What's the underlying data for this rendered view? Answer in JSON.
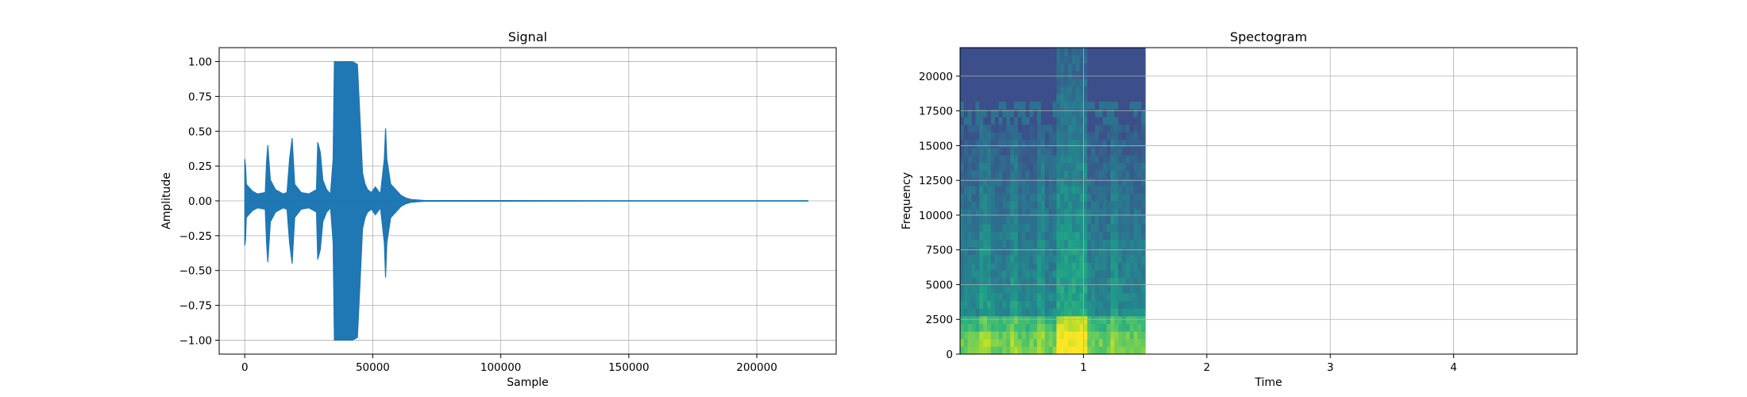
{
  "chart_data": [
    {
      "type": "line",
      "title": "Signal",
      "xlabel": "Sample",
      "ylabel": "Amplitude",
      "xlim": [
        -10000,
        231000
      ],
      "ylim": [
        -1.1,
        1.1
      ],
      "xticks": [
        0,
        50000,
        100000,
        150000,
        200000
      ],
      "yticks": [
        -1.0,
        -0.75,
        -0.5,
        -0.25,
        0.0,
        0.25,
        0.5,
        0.75,
        1.0
      ],
      "xtick_labels": [
        "0",
        "50000",
        "100000",
        "150000",
        "200000"
      ],
      "ytick_labels": [
        "−1.00",
        "−0.75",
        "−0.50",
        "−0.25",
        "0.00",
        "0.25",
        "0.50",
        "0.75",
        "1.00"
      ],
      "grid": true,
      "color": "#1f77b4",
      "series": [
        {
          "x": [
            0,
            300,
            600,
            1500,
            3000,
            5000,
            8000,
            8500,
            9000,
            10000,
            12000,
            15000,
            16500,
            17500,
            18500,
            19500,
            22000,
            25000,
            28000,
            28500,
            29500,
            30500,
            32000,
            33500,
            34500,
            35000,
            36000,
            38000,
            40000,
            42000,
            44000,
            45000,
            46000,
            47000,
            48000,
            49500,
            51000,
            53000,
            54500,
            55000,
            55500,
            57000,
            59000,
            61000,
            63000,
            65000,
            70000,
            100000,
            150000,
            200000,
            220000
          ],
          "upper": [
            0.3,
            0.25,
            0.12,
            0.1,
            0.07,
            0.05,
            0.06,
            0.28,
            0.4,
            0.15,
            0.08,
            0.05,
            0.06,
            0.3,
            0.45,
            0.12,
            0.06,
            0.05,
            0.08,
            0.42,
            0.35,
            0.15,
            0.08,
            0.05,
            0.3,
            1.0,
            1.0,
            1.0,
            1.0,
            1.0,
            0.98,
            0.6,
            0.2,
            0.12,
            0.08,
            0.06,
            0.1,
            0.05,
            0.3,
            0.52,
            0.3,
            0.12,
            0.08,
            0.04,
            0.02,
            0.01,
            0.003,
            0.002,
            0.001,
            0.001,
            0.001
          ],
          "lower": [
            -0.32,
            -0.28,
            -0.12,
            -0.1,
            -0.07,
            -0.05,
            -0.06,
            -0.3,
            -0.44,
            -0.15,
            -0.08,
            -0.05,
            -0.06,
            -0.3,
            -0.45,
            -0.12,
            -0.06,
            -0.05,
            -0.08,
            -0.42,
            -0.35,
            -0.15,
            -0.08,
            -0.05,
            -0.3,
            -1.0,
            -1.0,
            -1.0,
            -1.0,
            -1.0,
            -0.98,
            -0.6,
            -0.2,
            -0.12,
            -0.08,
            -0.06,
            -0.1,
            -0.05,
            -0.3,
            -0.55,
            -0.3,
            -0.12,
            -0.08,
            -0.04,
            -0.02,
            -0.01,
            -0.003,
            -0.002,
            -0.001,
            -0.001,
            -0.001
          ]
        }
      ]
    },
    {
      "type": "heatmap",
      "title": "Spectogram",
      "xlabel": "Time",
      "ylabel": "Frequency",
      "xlim": [
        0,
        5
      ],
      "ylim": [
        0,
        22050
      ],
      "xticks": [
        1,
        2,
        3,
        4
      ],
      "yticks": [
        0,
        2500,
        5000,
        7500,
        10000,
        12500,
        15000,
        17500,
        20000
      ],
      "xtick_labels": [
        "1",
        "2",
        "3",
        "4"
      ],
      "ytick_labels": [
        "0",
        "2500",
        "5000",
        "7500",
        "10000",
        "12500",
        "15000",
        "17500",
        "20000"
      ],
      "grid": true,
      "colormap": "viridis",
      "data_extent_time": [
        0,
        1.5
      ],
      "time_bins": 48,
      "freq_bins": 40
    }
  ]
}
